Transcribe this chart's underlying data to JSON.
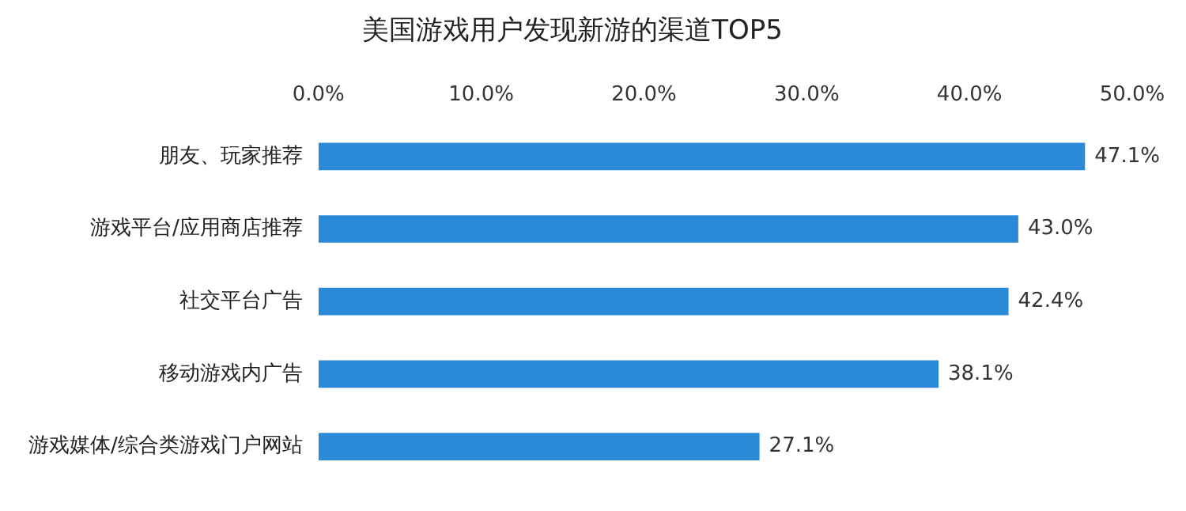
{
  "chart_data": {
    "type": "bar",
    "orientation": "horizontal",
    "title": "美国游戏用户发现新游的渠道TOP5",
    "categories": [
      "朋友、玩家推荐",
      "游戏平台/应用商店推荐",
      "社交平台广告",
      "移动游戏内广告",
      "游戏媒体/综合类游戏门户网站"
    ],
    "values": [
      47.1,
      43.0,
      42.4,
      38.1,
      27.1
    ],
    "value_labels": [
      "47.1%",
      "43.0%",
      "42.4%",
      "38.1%",
      "27.1%"
    ],
    "color": "#2a8ad8",
    "xlim": [
      0,
      50
    ],
    "xticks": [
      {
        "value": 0,
        "label": "0.0%"
      },
      {
        "value": 10,
        "label": "10.0%"
      },
      {
        "value": 20,
        "label": "20.0%"
      },
      {
        "value": 30,
        "label": "30.0%"
      },
      {
        "value": 40,
        "label": "40.0%"
      },
      {
        "value": 50,
        "label": "50.0%"
      }
    ],
    "grid": false,
    "legend": false
  }
}
